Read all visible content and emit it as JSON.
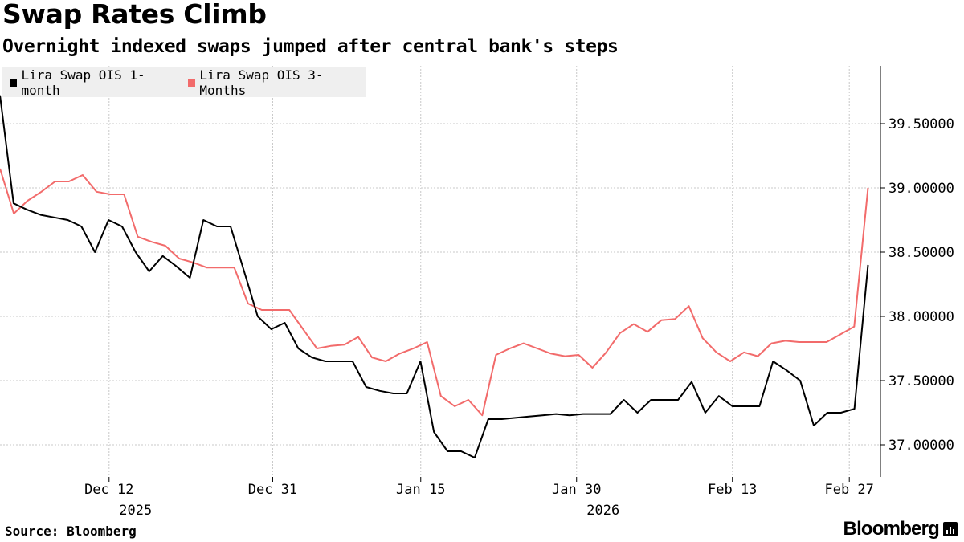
{
  "header": {
    "title": "Swap Rates Climb",
    "subtitle": "Overnight indexed swaps jumped after central bank's steps"
  },
  "footer": {
    "source": "Source: Bloomberg",
    "brand": "Bloomberg"
  },
  "colors": {
    "series1": "#000000",
    "series2": "#f26b6b",
    "grid": "#c8c8c8",
    "legend_bg": "#efefef"
  },
  "chart_data": {
    "type": "line",
    "title": "Swap Rates Climb",
    "subtitle": "Overnight indexed swaps jumped after central bank's steps",
    "xlabel": "",
    "ylabel": "",
    "ylim": [
      36.75,
      39.95
    ],
    "xlim": [
      0,
      56.5
    ],
    "y_ticks": [
      37.0,
      37.5,
      38.0,
      38.5,
      39.0,
      39.5
    ],
    "y_tick_labels": [
      "37.00000",
      "37.50000",
      "38.00000",
      "38.50000",
      "39.00000",
      "39.50000"
    ],
    "x_ticks": [
      {
        "pos": 7,
        "label": "Dec 12",
        "year": "2025"
      },
      {
        "pos": 17.5,
        "label": "Dec 31",
        "year": ""
      },
      {
        "pos": 27,
        "label": "Jan 15",
        "year": ""
      },
      {
        "pos": 37,
        "label": "Jan 30",
        "year": "2026"
      },
      {
        "pos": 47,
        "label": "Feb 13",
        "year": ""
      },
      {
        "pos": 54.5,
        "label": "Feb 27",
        "year": ""
      }
    ],
    "legend": "top-left",
    "series": [
      {
        "name": "Lira Swap OIS 1-month",
        "values": [
          39.72,
          38.88,
          38.83,
          38.79,
          38.77,
          38.75,
          38.7,
          38.5,
          38.75,
          38.7,
          38.5,
          38.35,
          38.47,
          38.39,
          38.3,
          38.75,
          38.7,
          38.7,
          38.35,
          38.0,
          37.9,
          37.95,
          37.75,
          37.68,
          37.65,
          37.65,
          37.65,
          37.45,
          37.42,
          37.4,
          37.4,
          37.65,
          37.1,
          36.95,
          36.95,
          36.9,
          37.2,
          37.2,
          37.21,
          37.22,
          37.23,
          37.24,
          37.23,
          37.24,
          37.24,
          37.24,
          37.35,
          37.25,
          37.35,
          37.35,
          37.35,
          37.49,
          37.25,
          37.38,
          37.3,
          37.3,
          37.3,
          37.65,
          37.58,
          37.5,
          37.15,
          37.25,
          37.25,
          37.28,
          38.4
        ]
      },
      {
        "name": "Lira Swap OIS 3-Months",
        "values": [
          39.15,
          38.8,
          38.9,
          38.97,
          39.05,
          39.05,
          39.1,
          38.97,
          38.95,
          38.95,
          38.62,
          38.58,
          38.55,
          38.45,
          38.42,
          38.38,
          38.38,
          38.38,
          38.1,
          38.05,
          38.05,
          38.05,
          37.9,
          37.75,
          37.77,
          37.78,
          37.84,
          37.68,
          37.65,
          37.71,
          37.75,
          37.8,
          37.38,
          37.3,
          37.35,
          37.23,
          37.7,
          37.75,
          37.79,
          37.75,
          37.71,
          37.69,
          37.7,
          37.6,
          37.72,
          37.87,
          37.94,
          37.88,
          37.97,
          37.98,
          38.08,
          37.83,
          37.72,
          37.65,
          37.72,
          37.69,
          37.79,
          37.81,
          37.8,
          37.8,
          37.8,
          37.86,
          37.92,
          39.0
        ]
      }
    ]
  }
}
